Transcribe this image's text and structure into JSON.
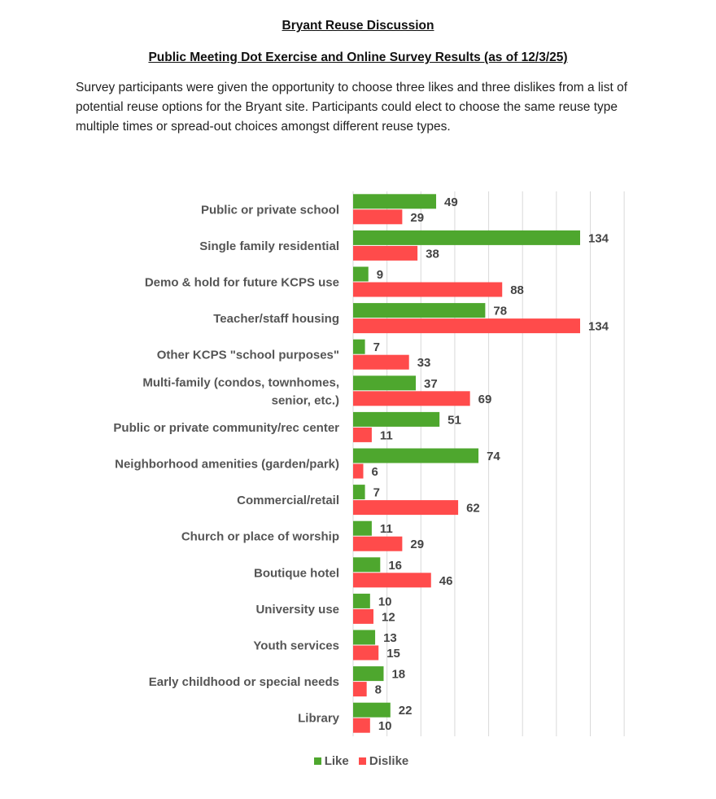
{
  "header": {
    "title": "Bryant Reuse Discussion",
    "subtitle": "Public Meeting Dot Exercise and Online Survey Results (as of 12/3/25)"
  },
  "intro": "Survey participants were given the opportunity to choose three likes and three dislikes from a list of potential reuse options for the Bryant site. Participants could elect to choose the same reuse type multiple times or spread-out choices amongst different reuse types.",
  "chart_data": {
    "type": "bar",
    "orientation": "horizontal",
    "categories": [
      [
        "Public or private school"
      ],
      [
        "Single family residential"
      ],
      [
        "Demo & hold for future KCPS use"
      ],
      [
        "Teacher/staff housing"
      ],
      [
        "Other KCPS \"school purposes\""
      ],
      [
        "Multi-family (condos, townhomes,",
        "senior, etc.)"
      ],
      [
        "Public or private community/rec center"
      ],
      [
        "Neighborhood amenities (garden/park)"
      ],
      [
        "Commercial/retail"
      ],
      [
        "Church or place of worship"
      ],
      [
        "Boutique hotel"
      ],
      [
        "University use"
      ],
      [
        "Youth services"
      ],
      [
        "Early childhood or special needs"
      ],
      [
        "Library"
      ]
    ],
    "series": [
      {
        "name": "Like",
        "color": "#4ea72e",
        "values": [
          49,
          134,
          9,
          78,
          7,
          37,
          51,
          74,
          7,
          11,
          16,
          10,
          13,
          18,
          22
        ]
      },
      {
        "name": "Dislike",
        "color": "#ff4b4b",
        "values": [
          29,
          38,
          88,
          134,
          33,
          69,
          11,
          6,
          62,
          29,
          46,
          12,
          15,
          8,
          10
        ]
      }
    ],
    "xlim": [
      0,
      160
    ],
    "grid_step": 20,
    "grid": true,
    "axis_tick_labels": false,
    "legend": "bottom"
  }
}
